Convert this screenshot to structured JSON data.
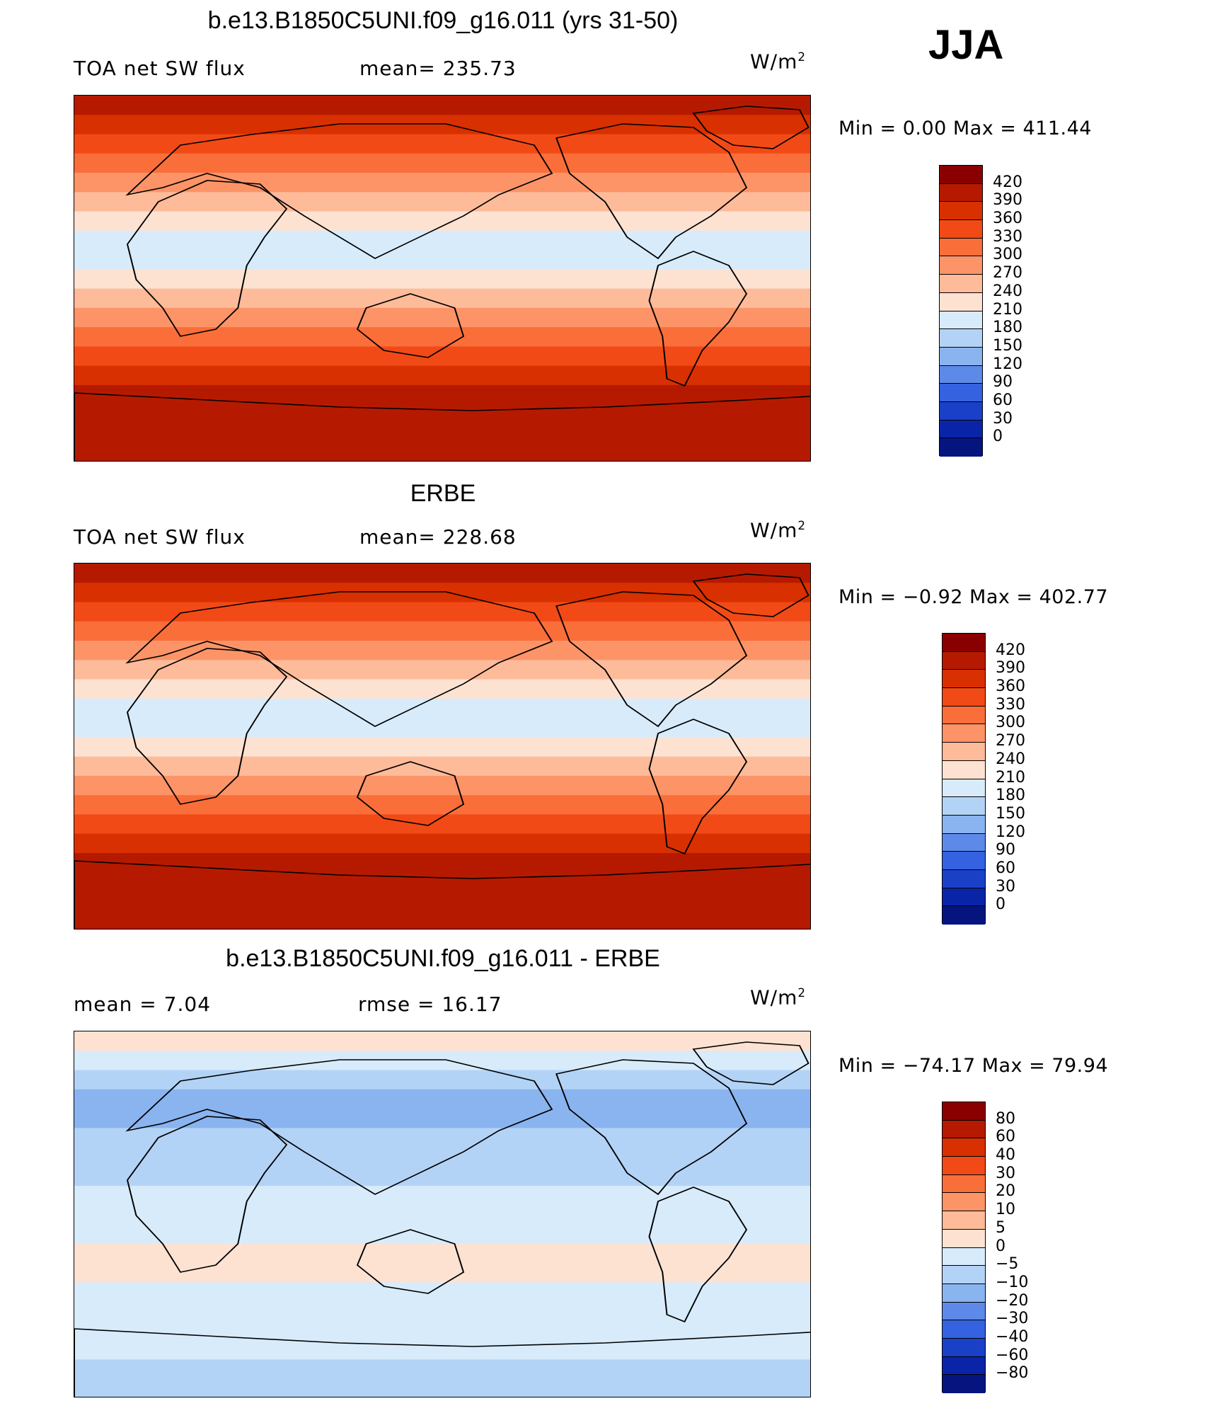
{
  "season": "JJA",
  "units_base": "W/m",
  "units_exp": "2",
  "panels": [
    {
      "title": "b.e13.B1850C5UNI.f09_g16.011 (yrs 31-50)",
      "left_label": "TOA net SW flux",
      "center_label": "mean= 235.73",
      "stats": "Min =    0.00 Max = 411.44",
      "levels": [
        "420",
        "390",
        "360",
        "330",
        "300",
        "270",
        "240",
        "210",
        "180",
        "150",
        "120",
        "90",
        "60",
        "30",
        "0"
      ],
      "colors": [
        "#8a0000",
        "#b51a00",
        "#d83000",
        "#f24a16",
        "#fa6e3a",
        "#fc9468",
        "#fdbb9a",
        "#fde2d2",
        "#d8ebfb",
        "#b3d3f6",
        "#8ab4ef",
        "#5d8ae8",
        "#3462e0",
        "#1a40c8",
        "#0a24a8",
        "#061480"
      ]
    },
    {
      "title": "ERBE",
      "left_label": "TOA net SW flux",
      "center_label": "mean= 228.68",
      "stats": "Min =  −0.92 Max = 402.77",
      "levels": [
        "420",
        "390",
        "360",
        "330",
        "300",
        "270",
        "240",
        "210",
        "180",
        "150",
        "120",
        "90",
        "60",
        "30",
        "0"
      ],
      "colors": [
        "#8a0000",
        "#b51a00",
        "#d83000",
        "#f24a16",
        "#fa6e3a",
        "#fc9468",
        "#fdbb9a",
        "#fde2d2",
        "#d8ebfb",
        "#b3d3f6",
        "#8ab4ef",
        "#5d8ae8",
        "#3462e0",
        "#1a40c8",
        "#0a24a8",
        "#061480"
      ]
    },
    {
      "title": "b.e13.B1850C5UNI.f09_g16.011 - ERBE",
      "left_label": "mean =     7.04",
      "center_label": "rmse =    16.17",
      "stats": "Min = −74.17 Max =   79.94",
      "levels": [
        "80",
        "60",
        "40",
        "30",
        "20",
        "10",
        "5",
        "0",
        "−5",
        "−10",
        "−20",
        "−30",
        "−40",
        "−60",
        "−80"
      ],
      "colors": [
        "#8a0000",
        "#b51a00",
        "#d83000",
        "#f24a16",
        "#fa6e3a",
        "#fc9468",
        "#fdbb9a",
        "#fde2d2",
        "#d8ebfb",
        "#b3d3f6",
        "#8ab4ef",
        "#5d8ae8",
        "#3462e0",
        "#1a40c8",
        "#0a24a8",
        "#061480"
      ]
    }
  ]
}
